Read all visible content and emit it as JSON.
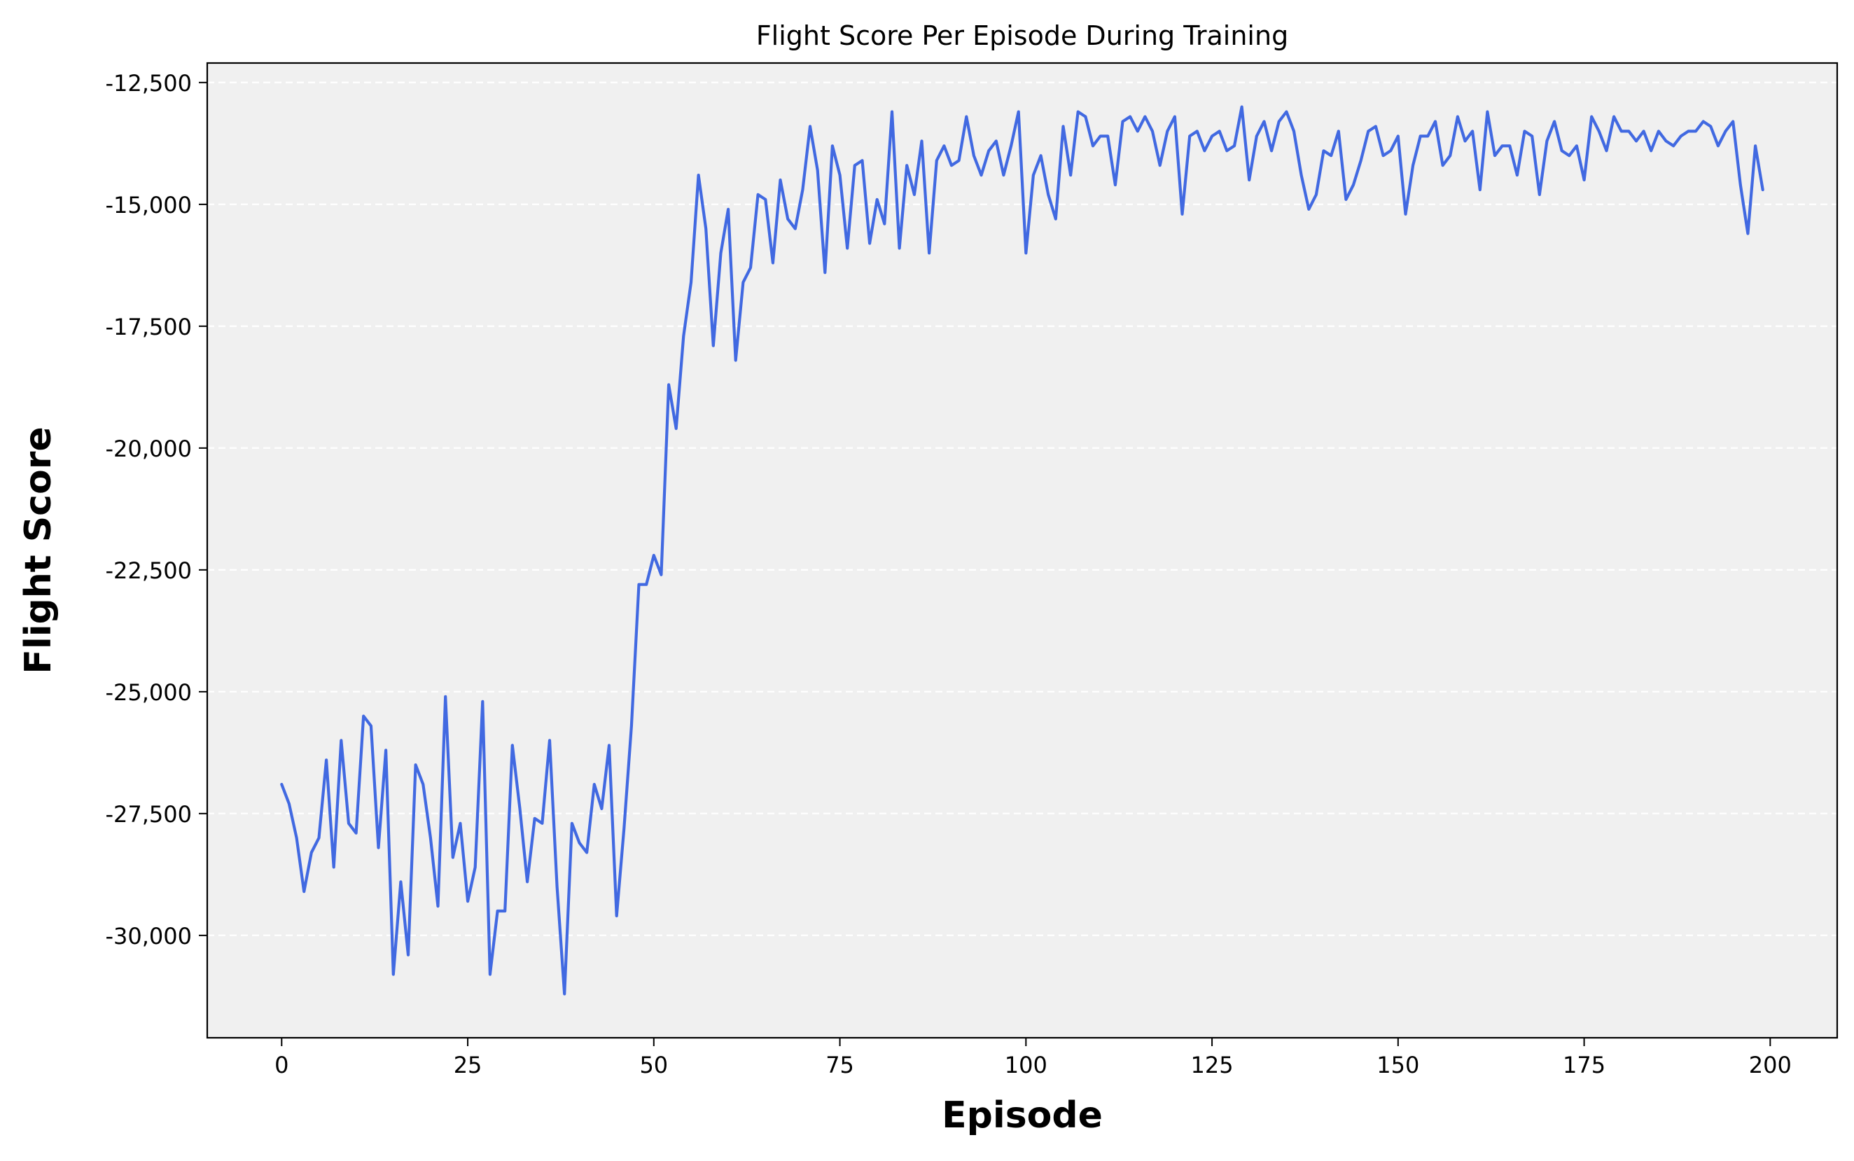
{
  "chart_data": {
    "type": "line",
    "title": "Flight Score Per Episode During Training",
    "xlabel": "Episode",
    "ylabel": "Flight Score",
    "xlim": [
      -10,
      209
    ],
    "ylim": [
      -32100,
      -12100
    ],
    "xticks": [
      0,
      25,
      50,
      75,
      100,
      125,
      150,
      175,
      200
    ],
    "xtick_labels": [
      "0",
      "25",
      "50",
      "75",
      "100",
      "125",
      "150",
      "175",
      "200"
    ],
    "yticks": [
      -12500,
      -15000,
      -17500,
      -20000,
      -22500,
      -25000,
      -27500,
      -30000
    ],
    "ytick_labels": [
      "-12,500",
      "-15,000",
      "-17,500",
      "-20,000",
      "-22,500",
      "-25,000",
      "-27,500",
      "-30,000"
    ],
    "grid": "y-dashed",
    "legend": "none",
    "colors": {
      "line": "#4169e1",
      "plot_background": "#f0f0f0",
      "grid": "#ffffff",
      "axes": "#000000"
    },
    "series": [
      {
        "values": [
          -26900,
          -27300,
          -28000,
          -29100,
          -28300,
          -28000,
          -26400,
          -28600,
          -26000,
          -27700,
          -27900,
          -25500,
          -25700,
          -28200,
          -26200,
          -30800,
          -28900,
          -30400,
          -26500,
          -26900,
          -28000,
          -29400,
          -25100,
          -28400,
          -27700,
          -29300,
          -28600,
          -25200,
          -30800,
          -29500,
          -29500,
          -26100,
          -27400,
          -28900,
          -27600,
          -27700,
          -26000,
          -29000,
          -31200,
          -27700,
          -28100,
          -28300,
          -26900,
          -27400,
          -26100,
          -29600,
          -27800,
          -25700,
          -22800,
          -22800,
          -22200,
          -22600,
          -18700,
          -19600,
          -17700,
          -16600,
          -14400,
          -15500,
          -17900,
          -16000,
          -15100,
          -18200,
          -16600,
          -16300,
          -14800,
          -14900,
          -16200,
          -14500,
          -15300,
          -15500,
          -14700,
          -13400,
          -14300,
          -16400,
          -13800,
          -14400,
          -15900,
          -14200,
          -14100,
          -15800,
          -14900,
          -15400,
          -13100,
          -15900,
          -14200,
          -14800,
          -13700,
          -16000,
          -14100,
          -13800,
          -14200,
          -14100,
          -13200,
          -14000,
          -14400,
          -13900,
          -13700,
          -14400,
          -13800,
          -13100,
          -16000,
          -14400,
          -14000,
          -14800,
          -15300,
          -13400,
          -14400,
          -13100,
          -13200,
          -13800,
          -13600,
          -13600,
          -14600,
          -13300,
          -13200,
          -13500,
          -13200,
          -13500,
          -14200,
          -13500,
          -13200,
          -15200,
          -13600,
          -13500,
          -13900,
          -13600,
          -13500,
          -13900,
          -13800,
          -13000,
          -14500,
          -13600,
          -13300,
          -13900,
          -13300,
          -13100,
          -13500,
          -14400,
          -15100,
          -14800,
          -13900,
          -14000,
          -13500,
          -14900,
          -14600,
          -14100,
          -13500,
          -13400,
          -14000,
          -13900,
          -13600,
          -15200,
          -14200,
          -13600,
          -13600,
          -13300,
          -14200,
          -14000,
          -13200,
          -13700,
          -13500,
          -14700,
          -13100,
          -14000,
          -13800,
          -13800,
          -14400,
          -13500,
          -13600,
          -14800,
          -13700,
          -13300,
          -13900,
          -14000,
          -13800,
          -14500,
          -13200,
          -13500,
          -13900,
          -13200,
          -13500,
          -13500,
          -13700,
          -13500,
          -13900,
          -13500,
          -13700,
          -13800,
          -13600,
          -13500,
          -13500,
          -13300,
          -13400,
          -13800,
          -13500,
          -13300,
          -14600,
          -15600,
          -13800,
          -14700
        ]
      }
    ]
  }
}
